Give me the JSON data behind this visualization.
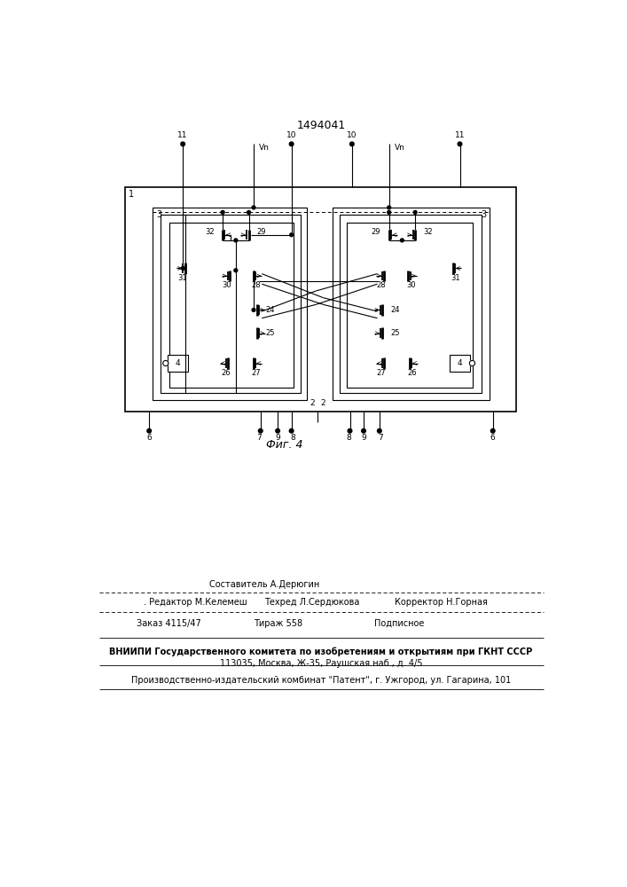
{
  "title": "1494041",
  "fig_label": "Фиг. 4",
  "bg_color": "#ffffff",
  "line_color": "#000000",
  "bottom_texts": {
    "line1": "Составитель А.Дерюгин",
    "line2_a": "Редактор М.Келемеш",
    "line2_b": "Техред Л.Сердюкова",
    "line2_c": "Корректор Н.Горная",
    "line3_a": "Заказ 4115/47",
    "line3_b": "Тираж 558",
    "line3_c": "Подписное",
    "line4a": "ВНИИПИ Государственного комитета по изобретениям и открытиям при ГКНТ СССР",
    "line4b": "113035, Москва, Ж-35, Раушская наб., д. 4/5",
    "line5": "Производственно-издательский комбинат \"Патент\", г. Ужгород, ул. Гагарина, 101"
  }
}
